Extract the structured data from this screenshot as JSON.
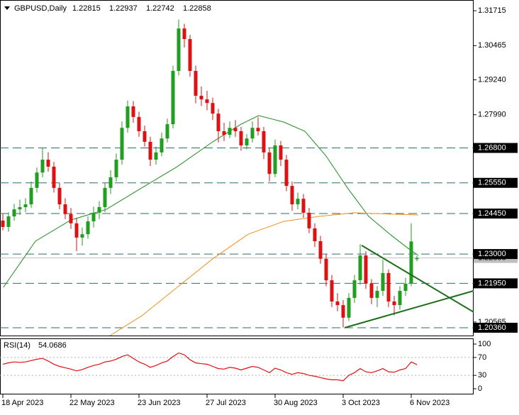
{
  "chart_data": {
    "type": "candlestick",
    "title": "GBPUSD,Daily",
    "xlim": [
      -0.5,
      83
    ],
    "ylim": [
      1.2008,
      1.321
    ],
    "xticks": [
      {
        "value": 0,
        "label": "18 Apr 2023"
      },
      {
        "value": 12,
        "label": "22 May 2023"
      },
      {
        "value": 24,
        "label": "23 Jun 2023"
      },
      {
        "value": 36,
        "label": "27 Jul 2023"
      },
      {
        "value": 48,
        "label": "30 Aug 2023"
      },
      {
        "value": 60,
        "label": "3 Oct 2023"
      },
      {
        "value": 72,
        "label": "6 Nov 2023"
      }
    ],
    "yticks": [
      1.31715,
      1.30465,
      {
        "value": 1.2924,
        "label": "1.29240"
      },
      {
        "value": 1.2799,
        "label": "1.27990"
      },
      1.20565
    ],
    "levels": [
      {
        "value": 1.268,
        "label": "1.26800"
      },
      {
        "value": 1.2555,
        "label": "1.25550"
      },
      {
        "value": 1.2445,
        "label": "1.24450"
      },
      {
        "value": 1.23,
        "label": "1.23000"
      },
      {
        "value": 1.2195,
        "label": "1.21950"
      },
      {
        "value": 1.2036,
        "label": "1.20360"
      }
    ],
    "level_color": "#2e6e6e",
    "current_price": 1.22858,
    "up_color": "#1f9e1f",
    "down_color": "#dd1111",
    "candles": [
      [
        1.242,
        1.2445,
        1.2385,
        1.2397
      ],
      [
        1.2397,
        1.245,
        1.238,
        1.2435
      ],
      [
        1.2435,
        1.248,
        1.242,
        1.246
      ],
      [
        1.246,
        1.2495,
        1.244,
        1.2468
      ],
      [
        1.2468,
        1.25,
        1.245,
        1.2478
      ],
      [
        1.2478,
        1.256,
        1.2465,
        1.2537
      ],
      [
        1.2537,
        1.261,
        1.252,
        1.2592
      ],
      [
        1.2592,
        1.268,
        1.2575,
        1.2638
      ],
      [
        1.2638,
        1.2665,
        1.2595,
        1.2613
      ],
      [
        1.2613,
        1.263,
        1.252,
        1.2537
      ],
      [
        1.2537,
        1.2555,
        1.246,
        1.2478
      ],
      [
        1.2478,
        1.25,
        1.2425,
        1.2443
      ],
      [
        1.2443,
        1.2465,
        1.239,
        1.241
      ],
      [
        1.241,
        1.243,
        1.231,
        1.2359
      ],
      [
        1.2359,
        1.2395,
        1.233,
        1.2371
      ],
      [
        1.2371,
        1.2435,
        1.2355,
        1.2417
      ],
      [
        1.2417,
        1.247,
        1.2395,
        1.2448
      ],
      [
        1.2448,
        1.249,
        1.2425,
        1.2468
      ],
      [
        1.2468,
        1.2555,
        1.245,
        1.2537
      ],
      [
        1.2537,
        1.26,
        1.2515,
        1.2575
      ],
      [
        1.2575,
        1.266,
        1.256,
        1.2638
      ],
      [
        1.2638,
        1.2775,
        1.262,
        1.2752
      ],
      [
        1.2752,
        1.285,
        1.2735,
        1.2829
      ],
      [
        1.2829,
        1.2848,
        1.277,
        1.2791
      ],
      [
        1.2791,
        1.281,
        1.272,
        1.274
      ],
      [
        1.274,
        1.276,
        1.2685,
        1.2702
      ],
      [
        1.2702,
        1.272,
        1.2615,
        1.2638
      ],
      [
        1.2638,
        1.2685,
        1.262,
        1.2664
      ],
      [
        1.2664,
        1.2735,
        1.265,
        1.2714
      ],
      [
        1.2714,
        1.2785,
        1.27,
        1.2765
      ],
      [
        1.2765,
        1.2975,
        1.275,
        1.2956
      ],
      [
        1.2956,
        1.314,
        1.294,
        1.3108
      ],
      [
        1.3108,
        1.3125,
        1.304,
        1.307
      ],
      [
        1.307,
        1.3085,
        1.2935,
        1.2956
      ],
      [
        1.2956,
        1.2975,
        1.284,
        1.2867
      ],
      [
        1.2867,
        1.29,
        1.283,
        1.2854
      ],
      [
        1.2854,
        1.2885,
        1.2815,
        1.2841
      ],
      [
        1.2841,
        1.286,
        1.278,
        1.2803
      ],
      [
        1.2803,
        1.282,
        1.27,
        1.274
      ],
      [
        1.274,
        1.277,
        1.2705,
        1.2727
      ],
      [
        1.2727,
        1.2775,
        1.2715,
        1.2752
      ],
      [
        1.2752,
        1.278,
        1.272,
        1.274
      ],
      [
        1.274,
        1.2755,
        1.267,
        1.2689
      ],
      [
        1.2689,
        1.273,
        1.2675,
        1.2714
      ],
      [
        1.2714,
        1.2775,
        1.27,
        1.2752
      ],
      [
        1.2752,
        1.279,
        1.2725,
        1.274
      ],
      [
        1.274,
        1.2755,
        1.264,
        1.2664
      ],
      [
        1.2664,
        1.268,
        1.256,
        1.2587
      ],
      [
        1.2587,
        1.271,
        1.2575,
        1.2689
      ],
      [
        1.2689,
        1.2705,
        1.2615,
        1.2638
      ],
      [
        1.2638,
        1.2655,
        1.2525,
        1.2544
      ],
      [
        1.2544,
        1.256,
        1.2455,
        1.2478
      ],
      [
        1.2478,
        1.252,
        1.246,
        1.2498
      ],
      [
        1.2498,
        1.2515,
        1.243,
        1.2448
      ],
      [
        1.2448,
        1.2465,
        1.2375,
        1.2392
      ],
      [
        1.2392,
        1.241,
        1.2325,
        1.2346
      ],
      [
        1.2346,
        1.2365,
        1.2265,
        1.2283
      ],
      [
        1.2283,
        1.23,
        1.2185,
        1.2206
      ],
      [
        1.2206,
        1.2225,
        1.211,
        1.213
      ],
      [
        1.213,
        1.216,
        1.2095,
        1.2117
      ],
      [
        1.2117,
        1.2135,
        1.2037,
        1.2072
      ],
      [
        1.2072,
        1.216,
        1.206,
        1.2143
      ],
      [
        1.2143,
        1.2225,
        1.2125,
        1.2206
      ],
      [
        1.2206,
        1.2335,
        1.219,
        1.2295
      ],
      [
        1.2295,
        1.231,
        1.2175,
        1.2194
      ],
      [
        1.2194,
        1.221,
        1.212,
        1.2143
      ],
      [
        1.2143,
        1.2185,
        1.211,
        1.2168
      ],
      [
        1.2168,
        1.228,
        1.215,
        1.2232
      ],
      [
        1.2232,
        1.2245,
        1.211,
        1.213
      ],
      [
        1.213,
        1.215,
        1.208,
        1.2117
      ],
      [
        1.2117,
        1.2185,
        1.21,
        1.2168
      ],
      [
        1.2168,
        1.2215,
        1.215,
        1.2194
      ],
      [
        1.2194,
        1.241,
        1.2185,
        1.2345
      ],
      [
        1.22815,
        1.22937,
        1.22742,
        1.22858
      ]
    ],
    "moving_averages": [
      {
        "color": "#1e8c1e",
        "points": [
          [
            0.1,
            1.2181
          ],
          [
            5.75,
            1.2346
          ],
          [
            12,
            1.2422
          ],
          [
            18.25,
            1.246
          ],
          [
            24.5,
            1.2537
          ],
          [
            30.75,
            1.2613
          ],
          [
            37,
            1.2702
          ],
          [
            42,
            1.2765
          ],
          [
            45.1,
            1.2796
          ],
          [
            49.5,
            1.2773
          ],
          [
            53.25,
            1.274
          ],
          [
            57,
            1.2651
          ],
          [
            60.75,
            1.2537
          ],
          [
            64.5,
            1.2435
          ],
          [
            68.25,
            1.2371
          ],
          [
            71.4,
            1.2321
          ],
          [
            73.25,
            1.2295
          ]
        ]
      },
      {
        "color": "#f0901e",
        "points": [
          [
            18.9,
            1.2008
          ],
          [
            24.5,
            1.2079
          ],
          [
            30.75,
            1.2181
          ],
          [
            37,
            1.2283
          ],
          [
            43.25,
            1.2371
          ],
          [
            49.5,
            1.2417
          ],
          [
            55.75,
            1.2435
          ],
          [
            62,
            1.2448
          ],
          [
            68.25,
            1.2443
          ],
          [
            73.25,
            1.244
          ]
        ]
      }
    ],
    "trendlines": [
      {
        "color": "#1a6e1a",
        "points": [
          [
            63.25,
            1.2331
          ],
          [
            83,
            1.2092
          ]
        ]
      },
      {
        "color": "#1a6e1a",
        "points": [
          [
            60.25,
            1.2036
          ],
          [
            83,
            1.2168
          ]
        ]
      }
    ],
    "rsi": {
      "label": "RSI(14)",
      "color": "#e01010",
      "ylim": [
        0,
        100
      ],
      "yticks": [
        100,
        70,
        30,
        0
      ],
      "levels": [
        70,
        30
      ],
      "values": [
        55,
        58,
        60,
        59,
        60,
        63,
        66,
        68,
        62,
        55,
        50,
        47,
        44,
        40,
        43,
        48,
        52,
        55,
        60,
        62,
        66,
        72,
        76,
        68,
        60,
        55,
        48,
        52,
        58,
        62,
        72,
        80,
        76,
        65,
        58,
        56,
        55,
        50,
        45,
        44,
        48,
        46,
        42,
        46,
        50,
        48,
        42,
        36,
        46,
        42,
        36,
        32,
        36,
        34,
        30,
        28,
        25,
        22,
        20,
        20,
        18,
        30,
        36,
        45,
        38,
        36,
        40,
        45,
        38,
        37,
        42,
        45,
        60,
        54.0686
      ]
    }
  }
}
